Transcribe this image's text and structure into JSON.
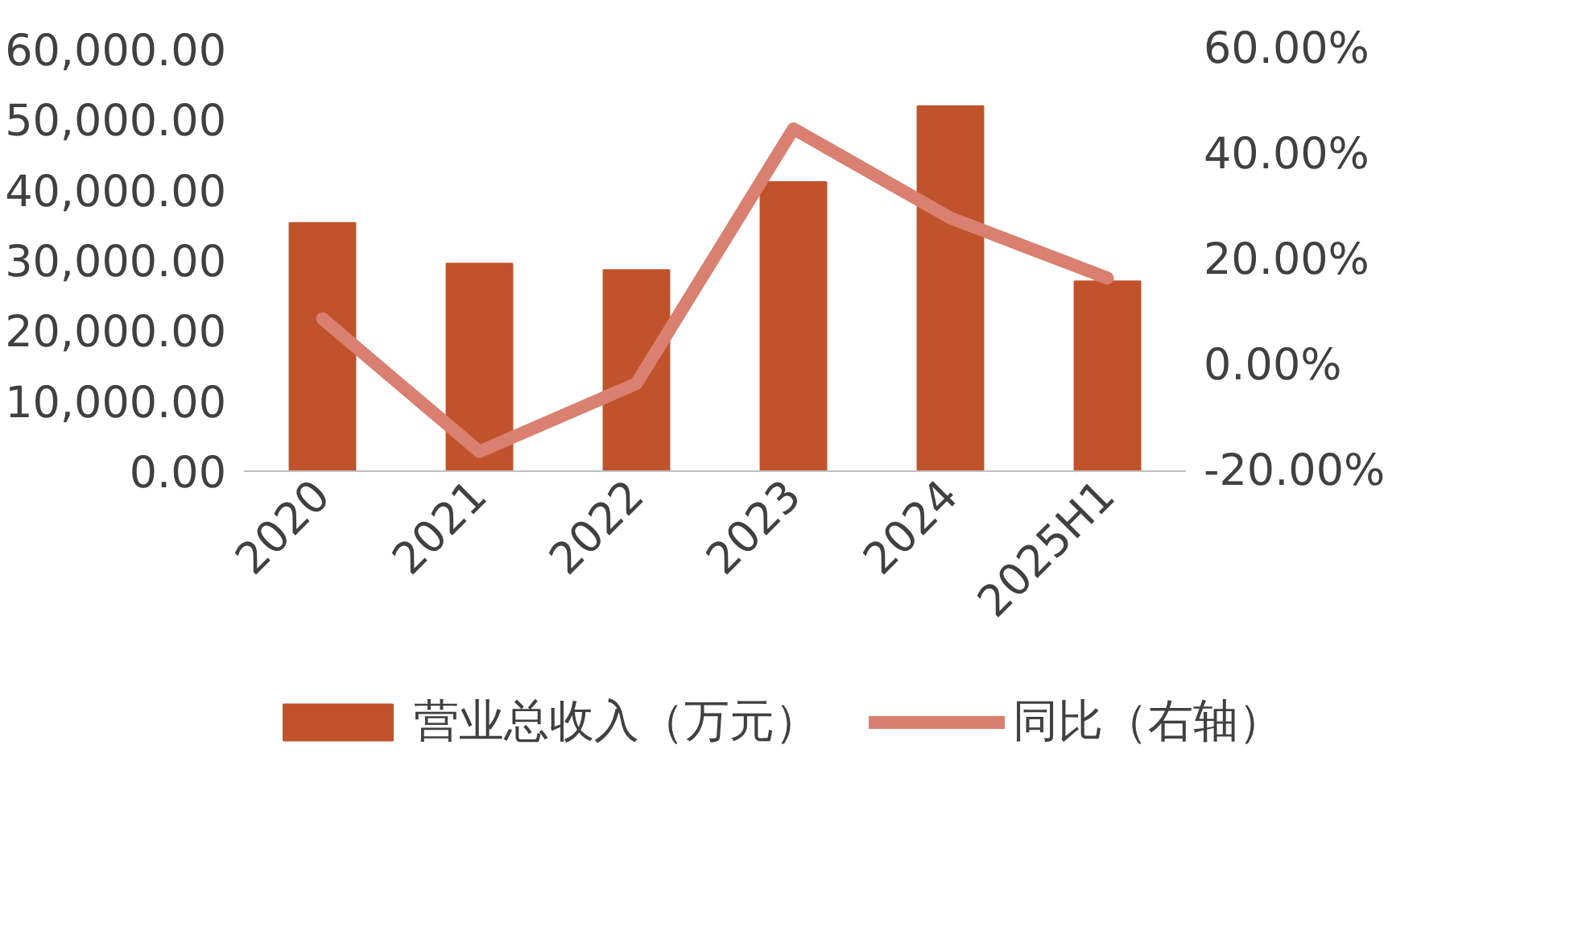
{
  "chart_data": {
    "type": "bar",
    "categories": [
      "2020",
      "2021",
      "2022",
      "2023",
      "2024",
      "2025H1"
    ],
    "series": [
      {
        "name": "营业总收入（万元）",
        "type": "bar",
        "color": "#c0532b",
        "values": [
          35300,
          29500,
          28600,
          41100,
          51900,
          27000
        ]
      },
      {
        "name": "同比（右轴）",
        "type": "line",
        "axis": "y2",
        "color": "#d98070",
        "values": [
          8.9,
          -16.3,
          -3.4,
          44.9,
          28.0,
          16.6
        ]
      }
    ],
    "ylim": [
      0,
      60000
    ],
    "yticks": [
      {
        "value": 0,
        "label": "0.00"
      },
      {
        "value": 10000,
        "label": "10,000.00"
      },
      {
        "value": 20000,
        "label": "20,000.00"
      },
      {
        "value": 30000,
        "label": "30,000.00"
      },
      {
        "value": 40000,
        "label": "40,000.00"
      },
      {
        "value": 50000,
        "label": "50,000.00"
      },
      {
        "value": 60000,
        "label": "60,000.00"
      }
    ],
    "y2lim": [
      -20,
      60
    ],
    "y2ticks": [
      {
        "value": -20,
        "label": "-20.00%"
      },
      {
        "value": 0,
        "label": "0.00%"
      },
      {
        "value": 20,
        "label": "20.00%"
      },
      {
        "value": 40,
        "label": "40.00%"
      },
      {
        "value": 60,
        "label": "60.00%"
      }
    ],
    "grid": false,
    "legend": "bottom",
    "line_style": "solid",
    "marker": "none"
  }
}
